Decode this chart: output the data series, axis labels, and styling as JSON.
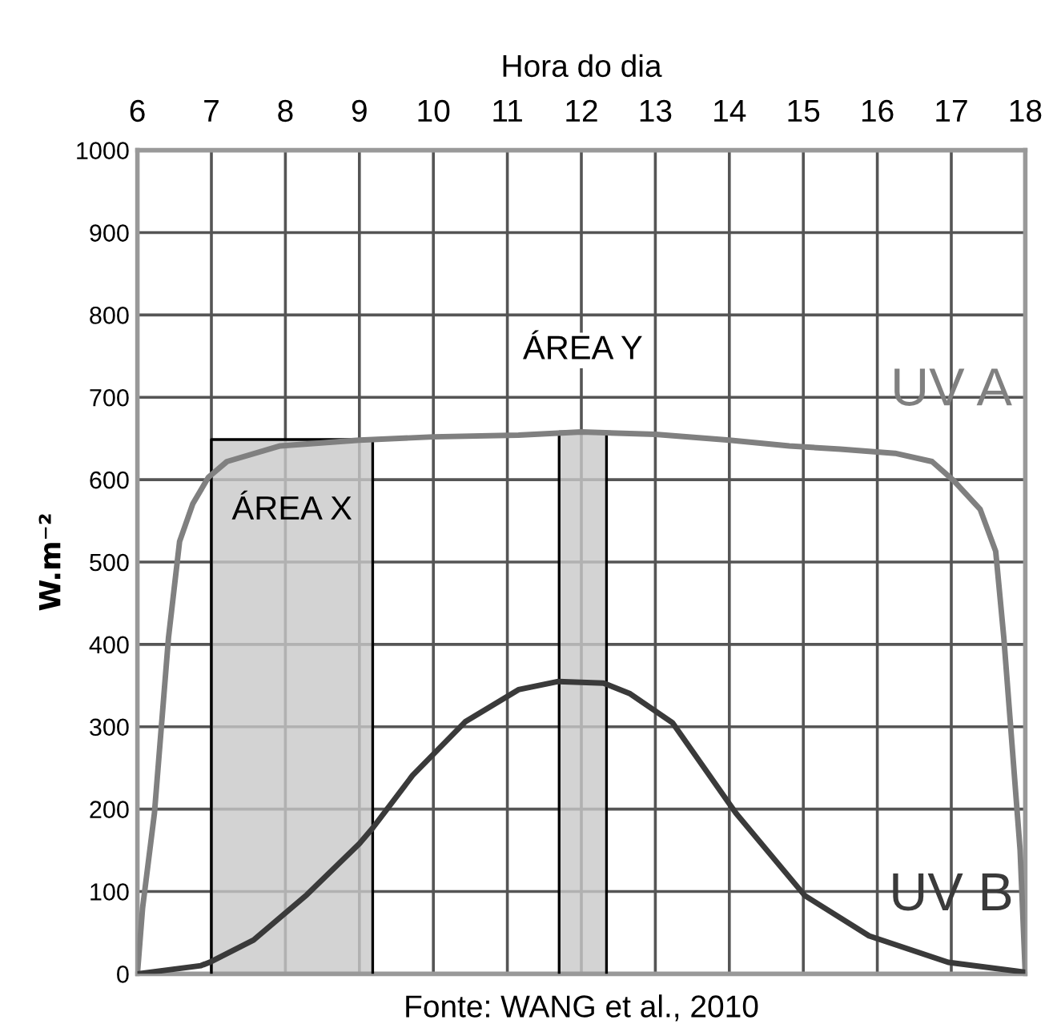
{
  "chart_data": {
    "type": "line",
    "xlabel": "Hora do dia",
    "ylabel": "W.m⁻²",
    "xlim": [
      6,
      18
    ],
    "xticks": [
      6,
      7,
      8,
      9,
      10,
      11,
      12,
      13,
      14,
      15,
      16,
      17,
      18
    ],
    "ylim": [
      0,
      1000
    ],
    "yticks": [
      0,
      100,
      200,
      300,
      400,
      500,
      600,
      700,
      800,
      900,
      1000
    ],
    "grid": true,
    "marker": "none",
    "line_style": "solid",
    "series": [
      {
        "name": "UV A",
        "color": "#808080",
        "x": [
          6,
          6.07,
          6.23,
          6.42,
          6.57,
          6.75,
          6.96,
          7.21,
          7.93,
          9,
          10,
          11.15,
          12,
          13,
          14,
          14.81,
          15.5,
          16.24,
          16.74,
          17.03,
          17.39,
          17.6,
          17.71,
          17.82,
          17.93,
          18
        ],
        "values": [
          0,
          80,
          195,
          408,
          525,
          571,
          603,
          622,
          641,
          648,
          652,
          654,
          658,
          655,
          648,
          641,
          637,
          632,
          622,
          599,
          564,
          513,
          408,
          279,
          150,
          0
        ]
      },
      {
        "name": "UV B",
        "color": "#3a3a3a",
        "x": [
          6,
          6.86,
          7,
          7.57,
          8.29,
          9,
          9.18,
          9.72,
          10.43,
          11.15,
          11.69,
          12.3,
          12.66,
          13.23,
          14.09,
          15.02,
          15.89,
          16.96,
          18
        ],
        "values": [
          0,
          10,
          15,
          41,
          96,
          158,
          177,
          241,
          306,
          345,
          355,
          353,
          340,
          305,
          195,
          95,
          46,
          14,
          2
        ]
      }
    ],
    "bands": [
      {
        "axis": "x",
        "from": 7,
        "to": 9.18,
        "label": "ÁREA X",
        "color": "#c8c8c8"
      },
      {
        "axis": "x",
        "from": 11.7,
        "to": 12.34,
        "label": "ÁREA Y",
        "color": "#c8c8c8"
      }
    ],
    "annotations": [
      "Fonte: WANG et al., 2010"
    ]
  }
}
